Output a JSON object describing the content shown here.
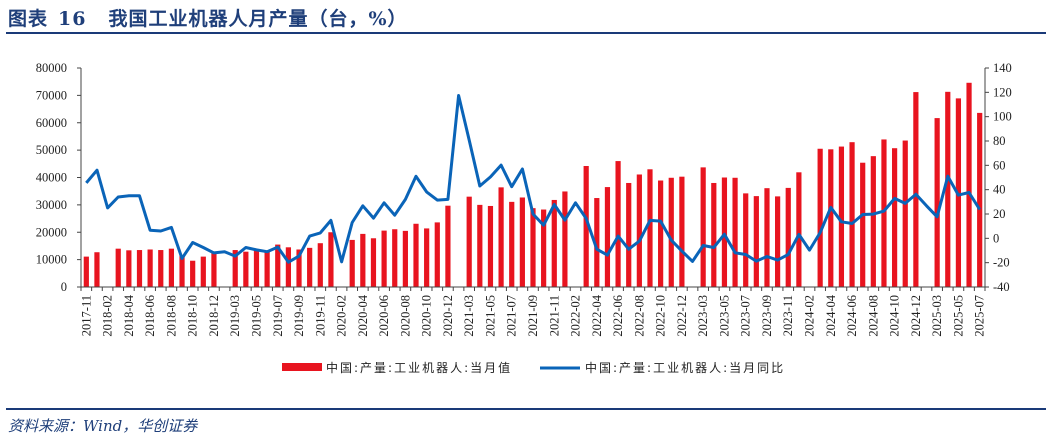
{
  "header": {
    "figure_label": "图表",
    "figure_number": "16",
    "title": "我国工业机器人月产量（台，%）"
  },
  "footer": {
    "source": "资料来源：Wind，华创证券"
  },
  "colors": {
    "bar": "#e8141f",
    "line": "#0a64b8",
    "accent": "#1a3a78"
  },
  "chart_data": {
    "type": "bar+line",
    "title": "我国工业机器人月产量（台，%）",
    "legend_position": "bottom",
    "grid": false,
    "y_left": {
      "label": "",
      "range": [
        0,
        80000
      ],
      "ticks": [
        0,
        10000,
        20000,
        30000,
        40000,
        50000,
        60000,
        70000,
        80000
      ]
    },
    "y_right": {
      "label": "",
      "range": [
        -40,
        140
      ],
      "ticks": [
        -40,
        -20,
        0,
        20,
        40,
        60,
        80,
        100,
        120,
        140
      ]
    },
    "categories": [
      "2017-11",
      "2017-12",
      "2018-02",
      "2018-03",
      "2018-04",
      "2018-05",
      "2018-06",
      "2018-07",
      "2018-08",
      "2018-09",
      "2018-10",
      "2018-11",
      "2018-12",
      "2019-02",
      "2019-03",
      "2019-04",
      "2019-05",
      "2019-06",
      "2019-07",
      "2019-08",
      "2019-09",
      "2019-10",
      "2019-11",
      "2019-12",
      "2020-02",
      "2020-03",
      "2020-04",
      "2020-05",
      "2020-06",
      "2020-07",
      "2020-08",
      "2020-09",
      "2020-10",
      "2020-11",
      "2020-12",
      "2021-02",
      "2021-03",
      "2021-04",
      "2021-05",
      "2021-06",
      "2021-07",
      "2021-08",
      "2021-09",
      "2021-10",
      "2021-11",
      "2021-12",
      "2022-02",
      "2022-03",
      "2022-04",
      "2022-05",
      "2022-06",
      "2022-07",
      "2022-08",
      "2022-09",
      "2022-10",
      "2022-11",
      "2022-12",
      "2023-02",
      "2023-03",
      "2023-04",
      "2023-05",
      "2023-06",
      "2023-07",
      "2023-08",
      "2023-09",
      "2023-10",
      "2023-11",
      "2023-12",
      "2024-02",
      "2024-03",
      "2024-04",
      "2024-05",
      "2024-06",
      "2024-07",
      "2024-08",
      "2024-09",
      "2024-10",
      "2024-11",
      "2024-12",
      "2025-02",
      "2025-03",
      "2025-04",
      "2025-05",
      "2025-06",
      "2025-07"
    ],
    "series": [
      {
        "name": "中国:产量:工业机器人:当月值",
        "type": "bar",
        "axis": "left",
        "values": [
          11100,
          12700,
          null,
          14000,
          13400,
          13500,
          13700,
          13500,
          14000,
          11600,
          9600,
          11100,
          12600,
          null,
          13500,
          12900,
          13500,
          13100,
          15500,
          14500,
          13700,
          14300,
          16000,
          20000,
          null,
          17200,
          19400,
          17800,
          20600,
          21100,
          20500,
          23100,
          21400,
          23600,
          29700,
          null,
          33000,
          30000,
          29600,
          36400,
          31100,
          32700,
          28800,
          28300,
          31800,
          34900,
          null,
          44200,
          32500,
          36500,
          46000,
          38000,
          41100,
          43000,
          38900,
          39900,
          40300,
          null,
          43700,
          38000,
          40000,
          39900,
          34200,
          33200,
          36100,
          33100,
          36200,
          41900,
          null,
          50500,
          50300,
          51300,
          52900,
          45400,
          47800,
          53900,
          50700,
          53500,
          71200,
          null,
          61700,
          71300,
          68900,
          74600,
          63600
        ]
      },
      {
        "name": "中国:产量:工业机器人:当月同比",
        "type": "line",
        "axis": "right",
        "values": [
          45.6,
          56,
          25,
          34,
          35,
          35,
          6.7,
          6,
          9,
          -16.5,
          -3.4,
          -7.5,
          -12,
          -11,
          -14.6,
          -7.5,
          -9.5,
          -11,
          -7.2,
          -19.6,
          -14.6,
          1.8,
          4.5,
          14.7,
          -19.3,
          13,
          26.7,
          16.6,
          29.2,
          19,
          32,
          51,
          38.2,
          31.4,
          32,
          117.4,
          80.7,
          43,
          50.5,
          60.2,
          42.4,
          57,
          20,
          10.8,
          27.8,
          15,
          29.2,
          16.3,
          -8.9,
          -13.8,
          1.8,
          -8.9,
          -2.3,
          14.7,
          14.2,
          -1.5,
          -10.5,
          -19,
          -5.9,
          -7.5,
          3.4,
          -11.9,
          -13.3,
          -18.7,
          -14.9,
          -17.9,
          -13.3,
          3.2,
          -9.7,
          4.8,
          25.4,
          13.6,
          12.2,
          19.6,
          19.9,
          22.4,
          32.8,
          28.7,
          36.3,
          26.7,
          17.7,
          51.1,
          35.5,
          37.7,
          23.7
        ]
      }
    ]
  }
}
